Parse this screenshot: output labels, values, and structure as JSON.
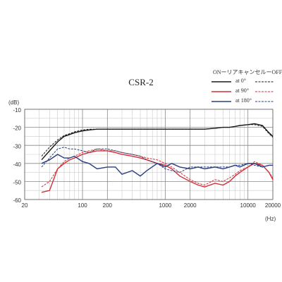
{
  "chart_data": {
    "type": "line",
    "title": "CSR-2",
    "y_label": "(dB)",
    "x_label": "(Hz)",
    "log_x": true,
    "grid": true,
    "legend_header": "ONーリアキャンセルーOFF",
    "xlim": [
      20,
      20000
    ],
    "xticks": [
      20,
      100,
      200,
      1000,
      2000,
      10000,
      20000
    ],
    "xgrid_minor": [
      30,
      40,
      50,
      60,
      70,
      80,
      90,
      300,
      400,
      500,
      600,
      700,
      800,
      900,
      3000,
      4000,
      5000,
      6000,
      7000,
      8000,
      9000
    ],
    "ylim": [
      -60,
      -10
    ],
    "yticks": [
      -60,
      -50,
      -40,
      -30,
      -20,
      -10
    ],
    "ygrid_minor": [
      -55,
      -45,
      -35,
      -25,
      -15
    ],
    "x": [
      32,
      40,
      50,
      60,
      70,
      80,
      100,
      120,
      150,
      200,
      250,
      300,
      400,
      500,
      600,
      800,
      1000,
      1200,
      1500,
      2000,
      2500,
      3000,
      4000,
      5000,
      6000,
      7000,
      8000,
      10000,
      12000,
      15000,
      18000,
      20000
    ],
    "series": [
      {
        "name": "at 0°",
        "color": "#1a1a1a",
        "dashed": false,
        "values": [
          -38,
          -33,
          -28,
          -25,
          -24,
          -23,
          -22,
          -21.5,
          -21,
          -21,
          -21,
          -21,
          -21,
          -21,
          -21,
          -21,
          -21,
          -21,
          -21,
          -21,
          -21,
          -21,
          -20.5,
          -20,
          -20,
          -19.5,
          -19,
          -18.5,
          -18,
          -19,
          -23,
          -25
        ]
      },
      {
        "name": "at 0°",
        "color": "#1a1a1a",
        "dashed": true,
        "values": [
          -36,
          -31,
          -27,
          -24.5,
          -23.5,
          -22.5,
          -21.5,
          -21,
          -21,
          -21,
          -21,
          -21,
          -21,
          -21,
          -21,
          -21,
          -21,
          -21,
          -21,
          -21,
          -21,
          -21,
          -20.5,
          -20,
          -20,
          -19.5,
          -19,
          -18.5,
          -18.5,
          -19.5,
          -23.5,
          -25.5
        ]
      },
      {
        "name": "at 90°",
        "color": "#d0303a",
        "dashed": false,
        "values": [
          -56,
          -55,
          -43,
          -40,
          -38,
          -37,
          -35,
          -34,
          -33,
          -33,
          -34,
          -35,
          -36,
          -37,
          -38,
          -40,
          -41,
          -43,
          -47,
          -50,
          -52,
          -53,
          -51,
          -52,
          -50,
          -47,
          -45,
          -42,
          -40,
          -41,
          -45,
          -49
        ]
      },
      {
        "name": "at 90°",
        "color": "#d0303a",
        "dashed": true,
        "values": [
          -53,
          -50,
          -43,
          -39,
          -37,
          -36,
          -34,
          -33,
          -32,
          -33,
          -33,
          -34,
          -35,
          -36,
          -37,
          -38,
          -40,
          -42,
          -45,
          -49,
          -51,
          -52,
          -49,
          -50,
          -48,
          -46,
          -44,
          -42,
          -39,
          -41,
          -45,
          -48
        ]
      },
      {
        "name": "at 180°",
        "color": "#2a3f80",
        "dashed": false,
        "values": [
          -40,
          -38,
          -35,
          -37,
          -37,
          -36,
          -39,
          -40,
          -43,
          -42,
          -42,
          -46,
          -44,
          -47,
          -44,
          -40,
          -42,
          -40,
          -42,
          -43,
          -42,
          -43,
          -42,
          -43,
          -42,
          -41,
          -42,
          -40,
          -40,
          -42,
          -41,
          -41
        ]
      },
      {
        "name": "at 180°",
        "color": "#2a3f80",
        "dashed": true,
        "values": [
          -42,
          -37,
          -32,
          -31,
          -32,
          -32,
          -33,
          -34,
          -32,
          -32,
          -33,
          -34,
          -35,
          -36,
          -38,
          -40,
          -43,
          -44,
          -45,
          -42,
          -42,
          -42,
          -42,
          -42,
          -42,
          -41,
          -41,
          -40,
          -41,
          -42,
          -41,
          -41
        ]
      }
    ]
  }
}
